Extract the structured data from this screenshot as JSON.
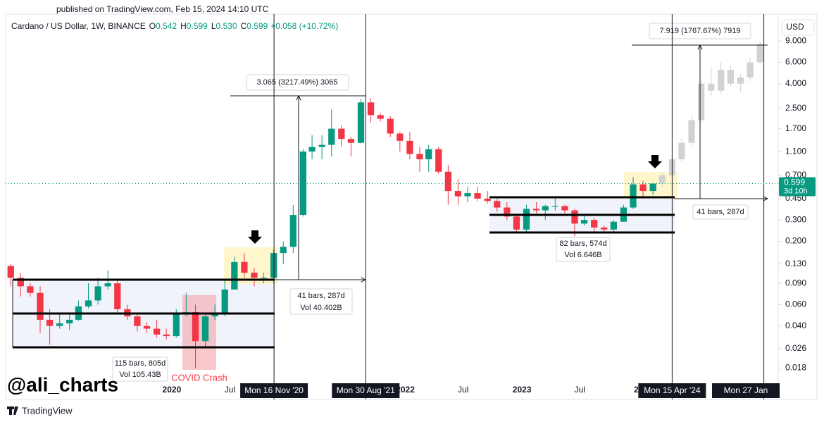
{
  "header": {
    "published": "published on TradingView.com, Feb 15, 2024 14:10 UTC",
    "watermark": "@ali_charts",
    "logo": "TradingView"
  },
  "chart_data": {
    "type": "candlestick",
    "title": "Cardano / US Dollar, 1W, BINANCE",
    "legend_values": [
      {
        "key": "O",
        "value": "0.542"
      },
      {
        "key": "H",
        "value": "0.599"
      },
      {
        "key": "L",
        "value": "0.530"
      },
      {
        "key": "C",
        "value": "0.599"
      }
    ],
    "change": "+0.058 (+10.72%)",
    "currency": "USD",
    "log_scale": true,
    "grid": false,
    "ylim": [
      0.0099,
      15
    ],
    "yticks": [
      {
        "value": 9,
        "label": "9.000"
      },
      {
        "value": 6,
        "label": "6.000"
      },
      {
        "value": 4,
        "label": "4.000"
      },
      {
        "value": 2.5,
        "label": "2.500"
      },
      {
        "value": 1.7,
        "label": "1.700"
      },
      {
        "value": 1.1,
        "label": "1.100"
      },
      {
        "value": 0.7,
        "label": "0.700"
      },
      {
        "value": 0.45,
        "label": "0.450"
      },
      {
        "value": 0.3,
        "label": "0.300"
      },
      {
        "value": 0.2,
        "label": "0.200"
      },
      {
        "value": 0.13,
        "label": "0.130"
      },
      {
        "value": 0.09,
        "label": "0.090"
      },
      {
        "value": 0.06,
        "label": "0.060"
      },
      {
        "value": 0.04,
        "label": "0.040"
      },
      {
        "value": 0.026,
        "label": "0.026"
      },
      {
        "value": 0.018,
        "label": "0.018"
      }
    ],
    "xlim": [
      "2018-07-30",
      "2025-03-13"
    ],
    "xticks": [
      {
        "value": "2020-01-01",
        "label": "2020"
      },
      {
        "value": "2020-07-01",
        "label": "Jul"
      },
      {
        "value": "2022-01-01",
        "label": "2022"
      },
      {
        "value": "2022-07-01",
        "label": "Jul"
      },
      {
        "value": "2023-01-01",
        "label": "2023"
      },
      {
        "value": "2023-07-01",
        "label": "Jul"
      },
      {
        "value": "2024-01-01",
        "label": "20"
      }
    ],
    "date_markers": [
      {
        "value": "2020-11-16",
        "label": "Mon 16 Nov '20"
      },
      {
        "value": "2021-08-30",
        "label": "Mon 30 Aug '21"
      },
      {
        "value": "2024-04-15",
        "label": "Mon 15 Apr '24"
      },
      {
        "value": "2025-01-27",
        "label": "Mon 27 Jan"
      }
    ],
    "up_color": "#089981",
    "down_color": "#f23645",
    "x": [
      "2018-08",
      "2018-09",
      "2018-10",
      "2018-11",
      "2018-12",
      "2019-01",
      "2019-02",
      "2019-03",
      "2019-04",
      "2019-05",
      "2019-06",
      "2019-07",
      "2019-08",
      "2019-09",
      "2019-10",
      "2019-11",
      "2019-12",
      "2020-01",
      "2020-02",
      "2020-03",
      "2020-04",
      "2020-05",
      "2020-06",
      "2020-07",
      "2020-08",
      "2020-09",
      "2020-10",
      "2020-11",
      "2020-12",
      "2021-01",
      "2021-02",
      "2021-03",
      "2021-04",
      "2021-05",
      "2021-06",
      "2021-07",
      "2021-08",
      "2021-09",
      "2021-10",
      "2021-11",
      "2021-12",
      "2022-01",
      "2022-02",
      "2022-03",
      "2022-04",
      "2022-05",
      "2022-06",
      "2022-07",
      "2022-08",
      "2022-09",
      "2022-10",
      "2022-11",
      "2022-12",
      "2023-01",
      "2023-02",
      "2023-03",
      "2023-04",
      "2023-05",
      "2023-06",
      "2023-07",
      "2023-08",
      "2023-09",
      "2023-10",
      "2023-11",
      "2023-12",
      "2024-01",
      "2024-02"
    ],
    "open": [
      0.125,
      0.1,
      0.085,
      0.075,
      0.045,
      0.04,
      0.042,
      0.045,
      0.058,
      0.065,
      0.085,
      0.09,
      0.055,
      0.048,
      0.04,
      0.038,
      0.034,
      0.033,
      0.05,
      0.052,
      0.03,
      0.048,
      0.05,
      0.08,
      0.135,
      0.11,
      0.1,
      0.1,
      0.16,
      0.18,
      0.33,
      1.1,
      1.2,
      1.25,
      1.7,
      1.4,
      1.3,
      2.8,
      2.2,
      2.05,
      1.55,
      1.35,
      1.05,
      0.95,
      1.15,
      0.75,
      0.52,
      0.47,
      0.5,
      0.45,
      0.43,
      0.38,
      0.32,
      0.25,
      0.37,
      0.36,
      0.39,
      0.39,
      0.36,
      0.28,
      0.3,
      0.26,
      0.25,
      0.29,
      0.38,
      0.59,
      0.52
    ],
    "high": [
      0.13,
      0.11,
      0.09,
      0.085,
      0.055,
      0.05,
      0.05,
      0.065,
      0.09,
      0.1,
      0.115,
      0.095,
      0.06,
      0.05,
      0.043,
      0.045,
      0.038,
      0.055,
      0.075,
      0.06,
      0.05,
      0.06,
      0.095,
      0.15,
      0.16,
      0.12,
      0.11,
      0.17,
      0.2,
      0.4,
      1.15,
      1.5,
      1.5,
      2.45,
      1.8,
      1.45,
      3,
      3.05,
      2.3,
      2.15,
      1.6,
      1.6,
      1.2,
      1.25,
      1.2,
      0.85,
      0.65,
      0.56,
      0.56,
      0.52,
      0.45,
      0.42,
      0.33,
      0.4,
      0.42,
      0.4,
      0.46,
      0.4,
      0.37,
      0.33,
      0.31,
      0.27,
      0.3,
      0.4,
      0.68,
      0.63,
      0.6
    ],
    "low": [
      0.085,
      0.07,
      0.07,
      0.035,
      0.028,
      0.038,
      0.037,
      0.044,
      0.056,
      0.06,
      0.08,
      0.05,
      0.045,
      0.036,
      0.035,
      0.032,
      0.031,
      0.032,
      0.048,
      0.018,
      0.027,
      0.045,
      0.048,
      0.08,
      0.1,
      0.085,
      0.09,
      0.09,
      0.13,
      0.16,
      0.32,
      0.95,
      0.95,
      1,
      1.2,
      1,
      1.28,
      1.9,
      1.95,
      1.45,
      1.1,
      0.95,
      0.75,
      0.75,
      0.72,
      0.4,
      0.4,
      0.42,
      0.43,
      0.41,
      0.35,
      0.3,
      0.24,
      0.24,
      0.34,
      0.3,
      0.36,
      0.34,
      0.22,
      0.27,
      0.24,
      0.24,
      0.24,
      0.29,
      0.37,
      0.45,
      0.48
    ],
    "close": [
      0.1,
      0.085,
      0.075,
      0.045,
      0.04,
      0.042,
      0.045,
      0.058,
      0.065,
      0.085,
      0.09,
      0.055,
      0.048,
      0.04,
      0.038,
      0.034,
      0.033,
      0.05,
      0.052,
      0.03,
      0.048,
      0.05,
      0.08,
      0.135,
      0.11,
      0.1,
      0.1,
      0.16,
      0.18,
      0.33,
      1.1,
      1.2,
      1.25,
      1.7,
      1.4,
      1.3,
      2.8,
      2.2,
      2.05,
      1.55,
      1.35,
      1.05,
      0.95,
      1.15,
      0.75,
      0.52,
      0.47,
      0.5,
      0.45,
      0.43,
      0.38,
      0.32,
      0.25,
      0.37,
      0.36,
      0.39,
      0.39,
      0.36,
      0.28,
      0.3,
      0.26,
      0.25,
      0.29,
      0.38,
      0.59,
      0.52,
      0.599
    ],
    "projection": {
      "color": "#d2d2d2",
      "x": [
        "2024-03",
        "2024-04",
        "2024-05",
        "2024-06",
        "2024-07",
        "2024-08",
        "2024-09",
        "2024-10",
        "2024-11",
        "2024-12",
        "2025-01"
      ],
      "open": [
        0.6,
        0.7,
        0.95,
        1.3,
        2,
        4,
        3.5,
        5.2,
        4,
        4.5,
        6
      ],
      "high": [
        0.75,
        1,
        1.4,
        2.2,
        4.2,
        5.5,
        6,
        5.6,
        4.8,
        6.5,
        9
      ],
      "low": [
        0.55,
        0.65,
        0.9,
        1.2,
        1.9,
        3.2,
        3.3,
        3.8,
        3.4,
        4.2,
        5.8
      ],
      "close": [
        0.7,
        0.95,
        1.3,
        2,
        4,
        3.5,
        5.2,
        4,
        4.5,
        6,
        8.5
      ]
    },
    "last_price": {
      "value": 0.599,
      "countdown": "3d 10h"
    },
    "annotations": {
      "measure_1": "3.065 (3217.49%) 3065",
      "measure_2": "7.919 (1767.67%) 7919",
      "range_1_bars": "115 bars, 805d",
      "range_1_vol": "Vol 105.43B",
      "breakout_1_bars": "41 bars, 287d",
      "breakout_1_vol": "Vol 40.402B",
      "range_2_bars": "82 bars, 574d",
      "range_2_vol": "Vol 6.646B",
      "breakout_2_bars": "41 bars, 287d",
      "event": "COVID Crash"
    }
  }
}
